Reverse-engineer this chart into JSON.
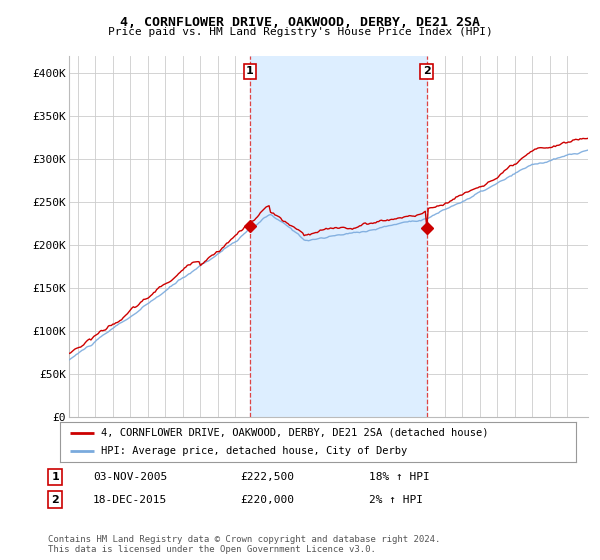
{
  "title": "4, CORNFLOWER DRIVE, OAKWOOD, DERBY, DE21 2SA",
  "subtitle": "Price paid vs. HM Land Registry's House Price Index (HPI)",
  "sale1_date": "03-NOV-2005",
  "sale1_price": 222500,
  "sale1_hpi": "18% ↑ HPI",
  "sale2_date": "18-DEC-2015",
  "sale2_price": 220000,
  "sale2_hpi": "2% ↑ HPI",
  "legend_property": "4, CORNFLOWER DRIVE, OAKWOOD, DERBY, DE21 2SA (detached house)",
  "legend_hpi": "HPI: Average price, detached house, City of Derby",
  "footer": "Contains HM Land Registry data © Crown copyright and database right 2024.\nThis data is licensed under the Open Government Licence v3.0.",
  "red_color": "#cc0000",
  "blue_color": "#7aaadd",
  "fill_color": "#ddeeff",
  "dashed_color": "#dd4444",
  "ylim": [
    0,
    420000
  ],
  "yticks": [
    0,
    50000,
    100000,
    150000,
    200000,
    250000,
    300000,
    350000,
    400000
  ],
  "ytick_labels": [
    "£0",
    "£50K",
    "£100K",
    "£150K",
    "£200K",
    "£250K",
    "£300K",
    "£350K",
    "£400K"
  ],
  "background_color": "#ffffff",
  "grid_color": "#cccccc",
  "sale1_year": 2005.84,
  "sale2_year": 2015.96,
  "xstart": 1995.5,
  "xend": 2025.2
}
